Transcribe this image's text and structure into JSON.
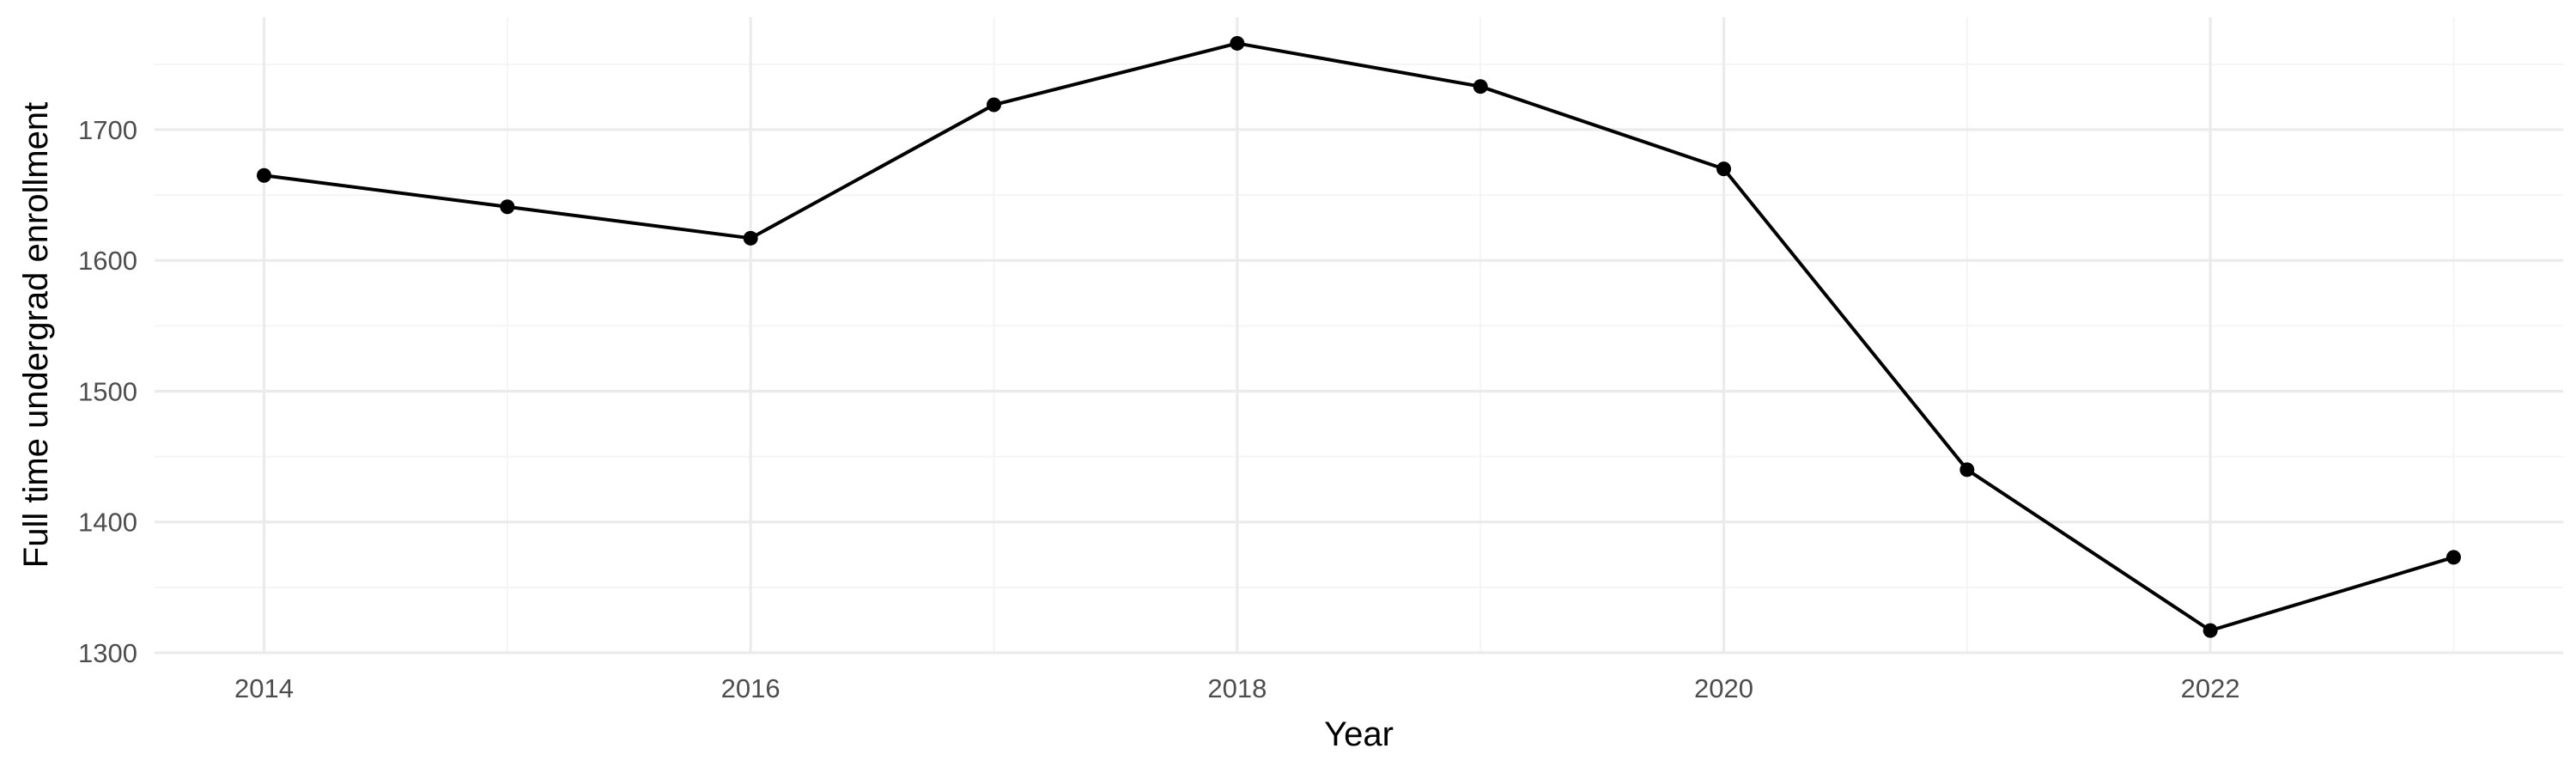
{
  "chart_data": {
    "type": "line",
    "title": "",
    "xlabel": "Year",
    "ylabel": "Full time undergrad enrollment",
    "x": [
      2014,
      2015,
      2016,
      2017,
      2018,
      2019,
      2020,
      2021,
      2022,
      2023
    ],
    "series": [
      {
        "values": [
          1665,
          1641,
          1617,
          1719,
          1766,
          1733,
          1670,
          1440,
          1317,
          1373
        ]
      }
    ],
    "xlim": [
      2013.55,
      2023.45
    ],
    "ylim": [
      1300,
      1786
    ],
    "x_ticks": [
      2014,
      2016,
      2018,
      2020,
      2022
    ],
    "y_ticks": [
      1300,
      1400,
      1500,
      1600,
      1700
    ],
    "x_tick_labels": [
      "2014",
      "2016",
      "2018",
      "2020",
      "2022"
    ],
    "y_tick_labels": [
      "1300",
      "1400",
      "1500",
      "1600",
      "1700"
    ],
    "grid": true,
    "line_color": "#000000",
    "grid_color": "#ebebeb",
    "background": "#ffffff"
  }
}
